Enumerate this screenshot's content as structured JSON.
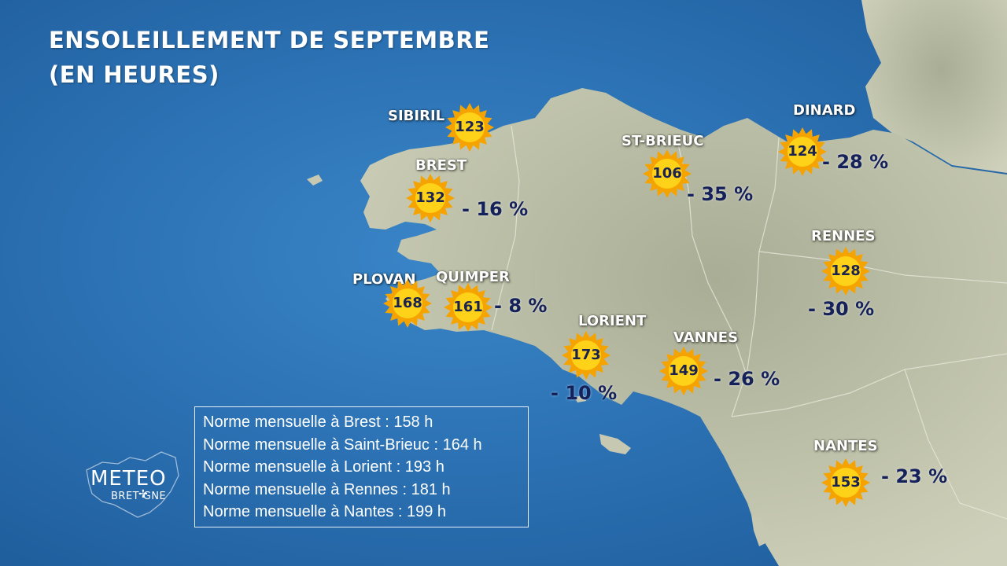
{
  "title": {
    "line1": "ENSOLEILLEMENT DE SEPTEMBRE",
    "line2": "(EN HEURES)"
  },
  "colors": {
    "sea": "#2c72b4",
    "land": "#bcbfa6",
    "sun_core": "#ffd21a",
    "sun_rays": "#f5a300",
    "value_text": "#1a2350",
    "anomaly_text": "#14215a",
    "label_text": "#ffffff"
  },
  "stations": [
    {
      "name": "SIBIRIL",
      "hours": "123",
      "anomaly": ""
    },
    {
      "name": "BREST",
      "hours": "132",
      "anomaly": "- 16 %"
    },
    {
      "name": "ST-BRIEUC",
      "hours": "106",
      "anomaly": "- 35 %"
    },
    {
      "name": "DINARD",
      "hours": "124",
      "anomaly": "- 28 %"
    },
    {
      "name": "RENNES",
      "hours": "128",
      "anomaly": "- 30 %"
    },
    {
      "name": "PLOVAN",
      "hours": "168",
      "anomaly": ""
    },
    {
      "name": "QUIMPER",
      "hours": "161",
      "anomaly": "- 8 %"
    },
    {
      "name": "LORIENT",
      "hours": "173",
      "anomaly": "- 10 %"
    },
    {
      "name": "VANNES",
      "hours": "149",
      "anomaly": "- 26 %"
    },
    {
      "name": "NANTES",
      "hours": "153",
      "anomaly": "- 23 %"
    }
  ],
  "norms": [
    "Norme mensuelle à Brest : 158 h",
    "Norme mensuelle à Saint-Brieuc : 164 h",
    "Norme mensuelle à Lorient : 193 h",
    "Norme mensuelle à Rennes : 181 h",
    "Norme mensuelle à Nantes : 199 h"
  ],
  "logo": {
    "line1": "METEO",
    "line2": "BRET GNE"
  }
}
